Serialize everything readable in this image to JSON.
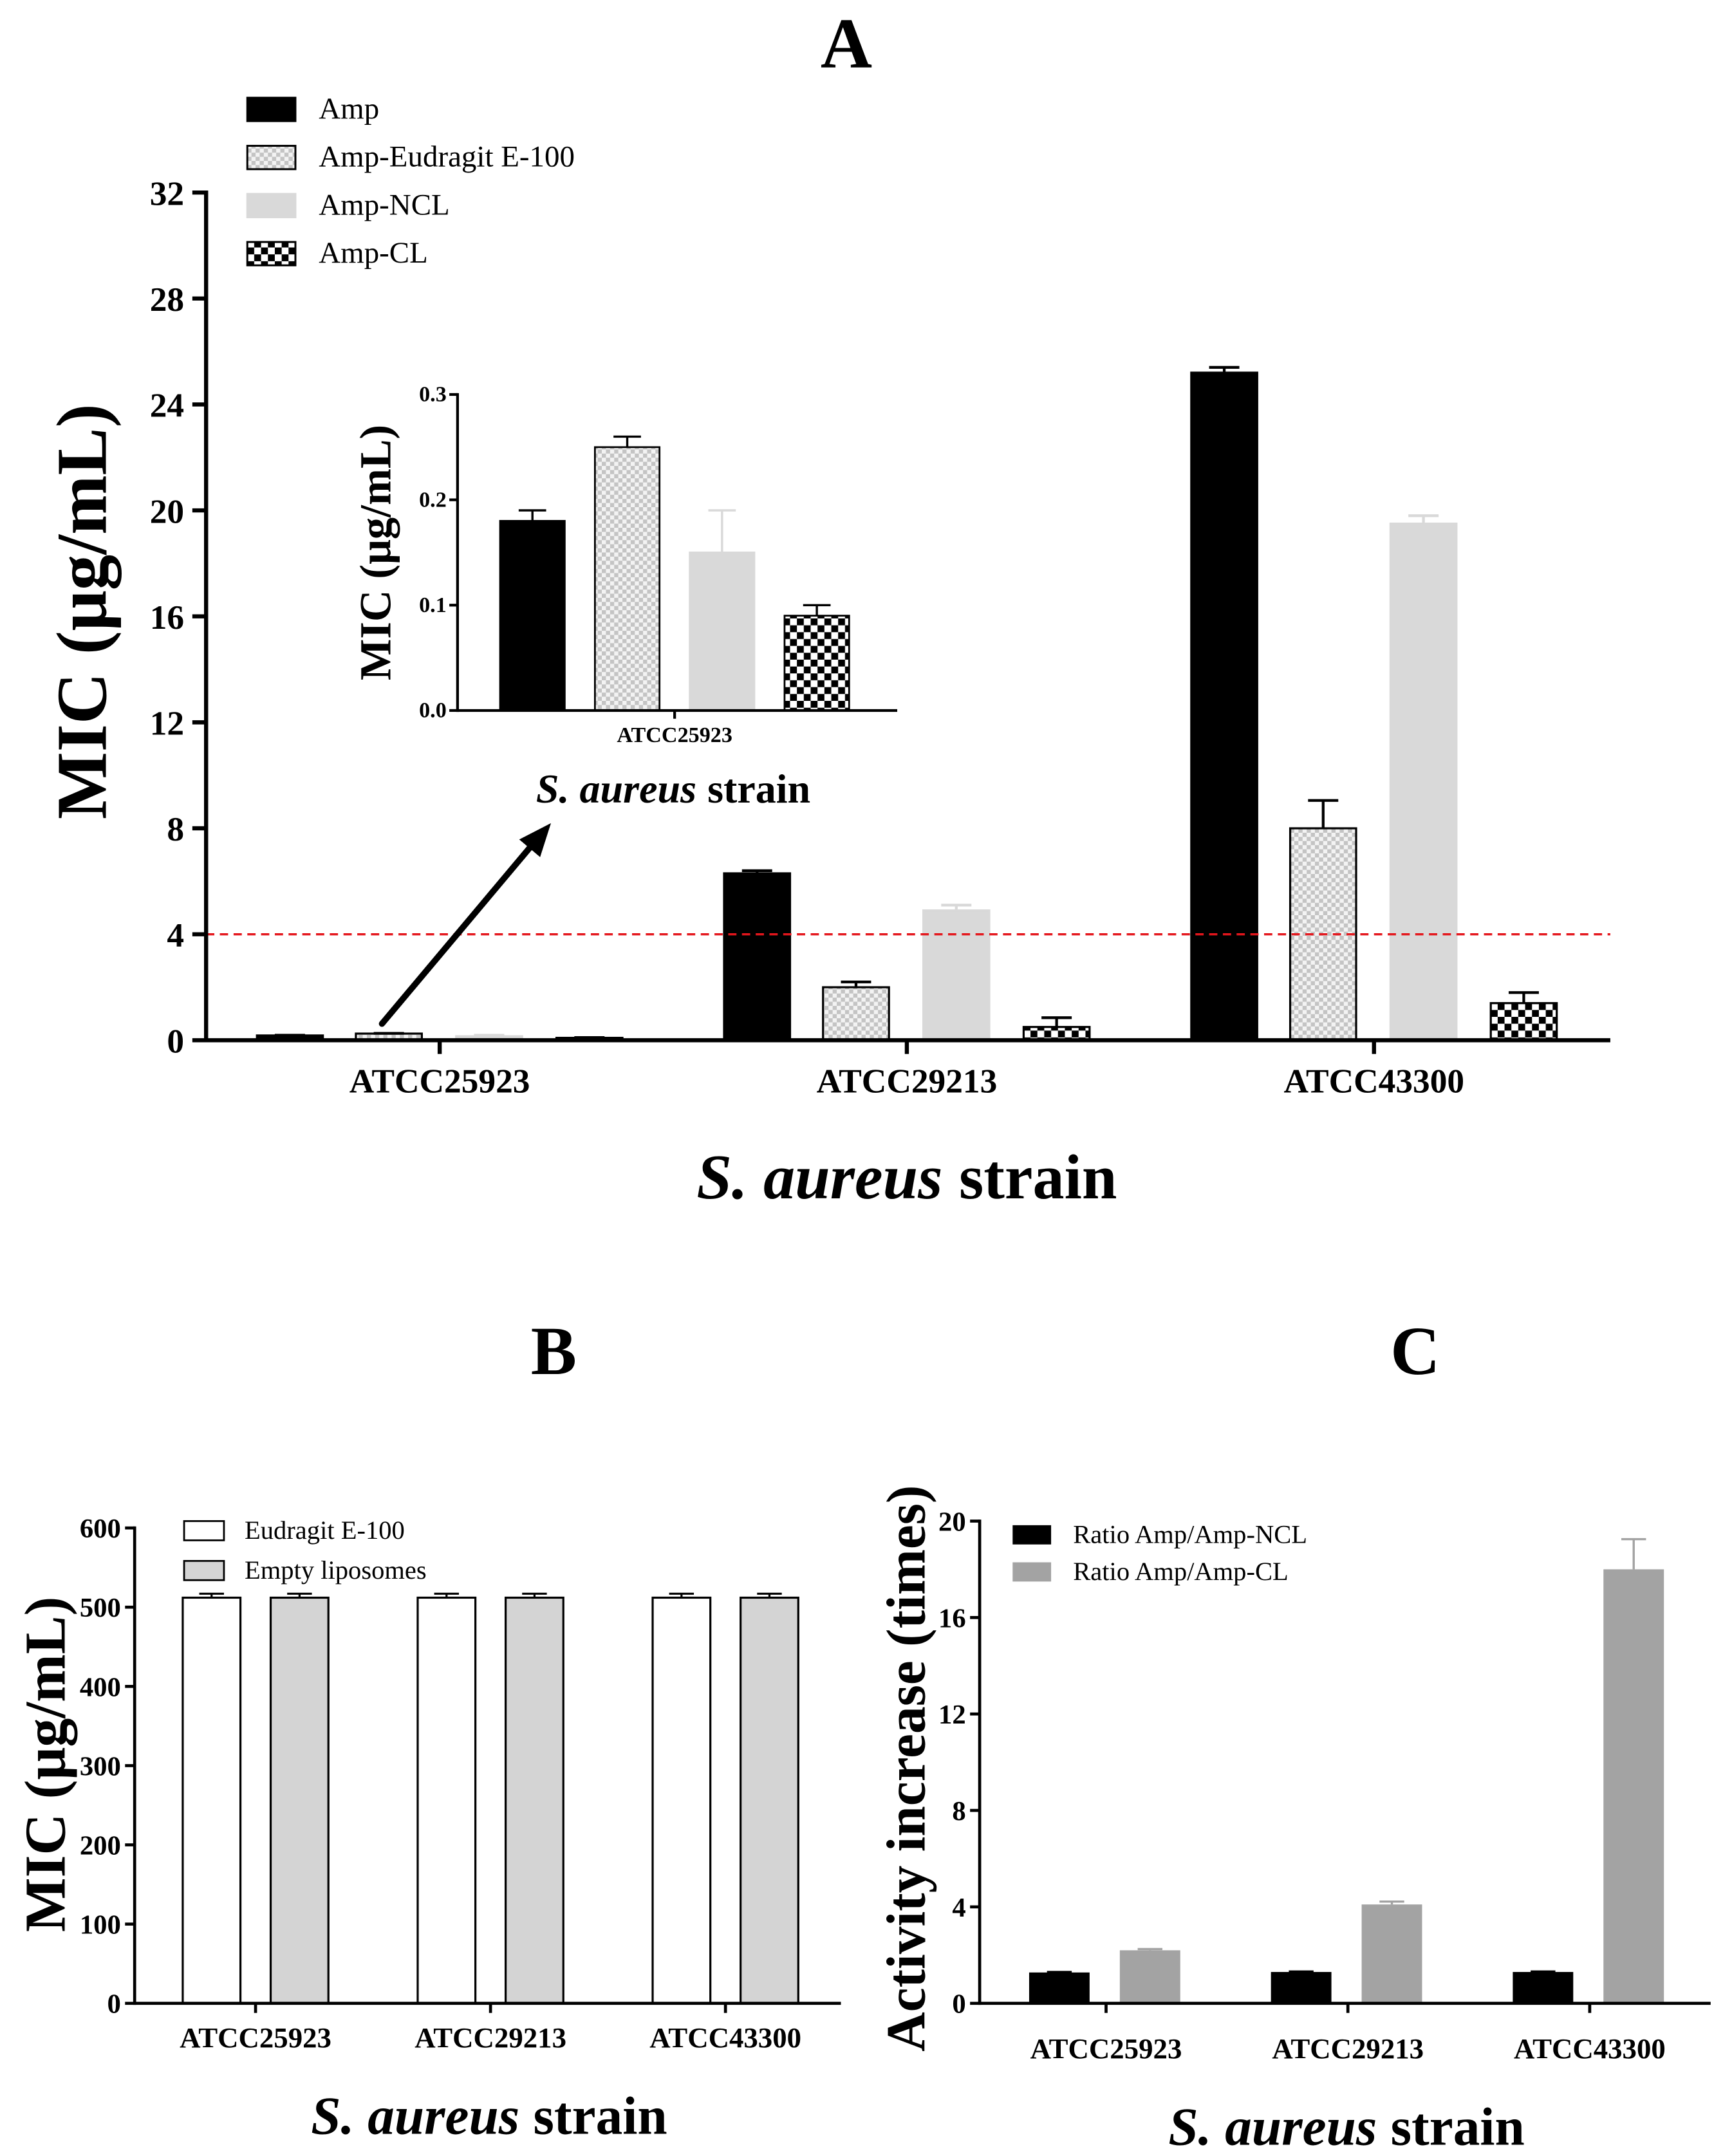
{
  "chart_data": [
    {
      "type": "bar",
      "title": "A",
      "categories": [
        "ATCC25923",
        "ATCC29213",
        "ATCC43300"
      ],
      "series": [
        {
          "name": "Amp",
          "values": [
            0.18,
            6.3,
            25.2
          ],
          "errors": [
            0.01,
            0.1,
            0.2
          ],
          "color": "#000000",
          "edge": "#000000"
        },
        {
          "name": "Amp-Eudragit E-100",
          "values": [
            0.25,
            2.0,
            8.0
          ],
          "errors": [
            0.01,
            0.2,
            1.05
          ],
          "color": "#c4c4c4",
          "edge": "#000000"
        },
        {
          "name": "Amp-NCL",
          "values": [
            0.15,
            4.9,
            19.5
          ],
          "errors": [
            0.04,
            0.2,
            0.3
          ],
          "color": "#d9d9d9",
          "edge": "#d9d9d9"
        },
        {
          "name": "Amp-CL",
          "values": [
            0.09,
            0.5,
            1.4
          ],
          "errors": [
            0.01,
            0.35,
            0.4
          ],
          "color": "#000000",
          "edge": "#000000"
        }
      ],
      "xlabel": {
        "italic": "S. aureus",
        "normal": "strain"
      },
      "ylabel": "MIC (μg/mL)",
      "ylim": [
        0,
        32
      ],
      "yticks": [
        "0",
        "4",
        "8",
        "12",
        "16",
        "20",
        "24",
        "28",
        "32"
      ],
      "reference_line": {
        "y": 4,
        "color": "#e4161c"
      },
      "legend": "top-left",
      "grid": false
    },
    {
      "type": "bar",
      "categories": [
        "ATCC25923"
      ],
      "series": [
        {
          "legend_index": 0,
          "values": [
            0.18
          ],
          "errors": [
            0.01
          ],
          "color": "#000000",
          "edge": "#000000"
        },
        {
          "legend_index": 1,
          "values": [
            0.25
          ],
          "errors": [
            0.01
          ],
          "color": "#c4c4c4",
          "edge": "#000000"
        },
        {
          "legend_index": 2,
          "values": [
            0.15
          ],
          "errors": [
            0.04
          ],
          "color": "#d9d9d9",
          "edge": "#d9d9d9"
        },
        {
          "legend_index": 3,
          "values": [
            0.09
          ],
          "errors": [
            0.01
          ],
          "color": "#000000",
          "edge": "#000000"
        }
      ],
      "xlabel": {
        "italic": "S. aureus",
        "normal": "strain"
      },
      "ylabel": "MIC (μg/mL)",
      "ylim": [
        0,
        0.3
      ],
      "yticks": [
        "0.0",
        "0.1",
        "0.2",
        "0.3"
      ],
      "grid": false
    },
    {
      "type": "bar",
      "title": "B",
      "categories": [
        "ATCC25923",
        "ATCC29213",
        "ATCC43300"
      ],
      "series": [
        {
          "name": "Eudragit E-100",
          "values": [
            512,
            512,
            512
          ],
          "errors": [
            5,
            5,
            5
          ],
          "color": "#ffffff",
          "edge": "#000000"
        },
        {
          "name": "Empty liposomes",
          "values": [
            512,
            512,
            512
          ],
          "errors": [
            5,
            5,
            5
          ],
          "color": "#d4d4d4",
          "edge": "#000000"
        }
      ],
      "xlabel": {
        "italic": "S. aureus",
        "normal": "strain"
      },
      "ylabel": "MIC (μg/mL)",
      "ylim": [
        0,
        600
      ],
      "yticks": [
        "0",
        "100",
        "200",
        "300",
        "400",
        "500",
        "600"
      ],
      "legend": "top-left",
      "grid": false
    },
    {
      "type": "bar",
      "title": "C",
      "categories": [
        "ATCC25923",
        "ATCC29213",
        "ATCC43300"
      ],
      "series": [
        {
          "name": "Ratio Amp/Amp-NCL",
          "values": [
            1.28,
            1.3,
            1.3
          ],
          "errors": [
            0.02,
            0.02,
            0.02
          ],
          "color": "#000000",
          "edge": "#000000"
        },
        {
          "name": "Ratio Amp/Amp-CL",
          "values": [
            2.2,
            4.1,
            18.0
          ],
          "errors": [
            0.05,
            0.12,
            1.25
          ],
          "color": "#a3a3a3",
          "edge": "#a3a3a3"
        }
      ],
      "xlabel": {
        "italic": "S. aureus",
        "normal": "strain"
      },
      "ylabel": "Activity increase (times)",
      "ylim": [
        0,
        20
      ],
      "yticks": [
        "0",
        "4",
        "8",
        "12",
        "16",
        "20"
      ],
      "legend": "top-left",
      "grid": false
    }
  ]
}
